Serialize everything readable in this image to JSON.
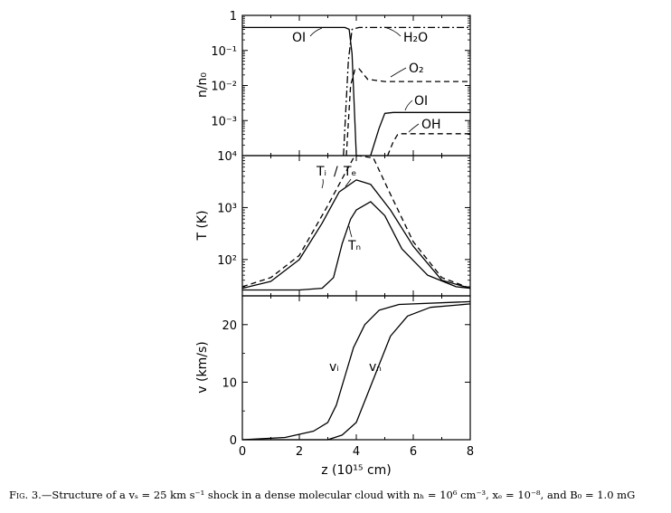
{
  "chart_data": [
    {
      "type": "line",
      "panel": "top",
      "ylabel": "n/n₀",
      "yscale": "log",
      "ylim": [
        0.0001,
        1
      ],
      "xlim": [
        0,
        8
      ],
      "ytick_labels": [
        "1",
        "10⁻¹",
        "10⁻²",
        "10⁻³"
      ],
      "series": [
        {
          "name": "OI",
          "style": "solid",
          "points": [
            [
              0,
              0.45
            ],
            [
              3.6,
              0.45
            ],
            [
              3.75,
              0.4
            ],
            [
              3.85,
              0.08
            ],
            [
              3.95,
              0.001
            ],
            [
              4.0,
              0.0001
            ]
          ]
        },
        {
          "name": "H₂O",
          "style": "dashdot",
          "points": [
            [
              3.55,
              0.0001
            ],
            [
              3.72,
              0.05
            ],
            [
              3.85,
              0.4
            ],
            [
              4.1,
              0.45
            ],
            [
              6,
              0.45
            ],
            [
              8,
              0.45
            ]
          ]
        },
        {
          "name": "O₂",
          "style": "dashed",
          "points": [
            [
              3.65,
              0.0001
            ],
            [
              3.8,
              0.01
            ],
            [
              3.95,
              0.028
            ],
            [
              4.1,
              0.03
            ],
            [
              4.4,
              0.015
            ],
            [
              5,
              0.013
            ],
            [
              8,
              0.013
            ]
          ]
        },
        {
          "name": "OI",
          "style": "solid",
          "points": [
            [
              4.5,
              0.0001
            ],
            [
              4.8,
              0.0006
            ],
            [
              5.0,
              0.0016
            ],
            [
              5.3,
              0.0017
            ],
            [
              8,
              0.0017
            ]
          ]
        },
        {
          "name": "OH",
          "style": "dashed",
          "points": [
            [
              5.1,
              0.0001
            ],
            [
              5.3,
              0.00025
            ],
            [
              5.45,
              0.0004
            ],
            [
              5.6,
              0.00042
            ],
            [
              8,
              0.00042
            ]
          ]
        }
      ]
    },
    {
      "type": "line",
      "panel": "middle",
      "ylabel": "T (K)",
      "yscale": "log",
      "ylim": [
        20,
        10000
      ],
      "xlim": [
        0,
        8
      ],
      "ytick_labels": [
        "10⁴",
        "10³",
        "10²"
      ],
      "series": [
        {
          "name": "Tᵢ",
          "style": "dashed",
          "points": [
            [
              0,
              30
            ],
            [
              1,
              45
            ],
            [
              2,
              120
            ],
            [
              3,
              1100
            ],
            [
              3.6,
              4500
            ],
            [
              3.9,
              9000
            ],
            [
              4.05,
              10000
            ],
            [
              4.6,
              9000
            ],
            [
              5.2,
              1800
            ],
            [
              6,
              220
            ],
            [
              7,
              45
            ],
            [
              8,
              28
            ]
          ]
        },
        {
          "name": "Tₑ",
          "style": "solid",
          "points": [
            [
              0,
              28
            ],
            [
              1,
              38
            ],
            [
              2,
              100
            ],
            [
              2.8,
              500
            ],
            [
              3.4,
              2000
            ],
            [
              4.0,
              3400
            ],
            [
              4.5,
              2800
            ],
            [
              5.2,
              900
            ],
            [
              6,
              180
            ],
            [
              7,
              40
            ],
            [
              8,
              28
            ]
          ]
        },
        {
          "name": "Tₙ",
          "style": "solid",
          "points": [
            [
              0,
              26
            ],
            [
              2,
              26
            ],
            [
              2.8,
              28
            ],
            [
              3.2,
              45
            ],
            [
              3.5,
              200
            ],
            [
              3.8,
              600
            ],
            [
              4.0,
              900
            ],
            [
              4.5,
              1300
            ],
            [
              5.0,
              700
            ],
            [
              5.6,
              160
            ],
            [
              6.5,
              50
            ],
            [
              7.5,
              30
            ],
            [
              8,
              28
            ]
          ]
        }
      ]
    },
    {
      "type": "line",
      "panel": "bottom",
      "xlabel": "z (10¹⁵ cm)",
      "ylabel": "v (km/s)",
      "yscale": "linear",
      "ylim": [
        0,
        25
      ],
      "xlim": [
        0,
        8
      ],
      "yticks": [
        0,
        10,
        20
      ],
      "xticks": [
        0,
        2,
        4,
        6,
        8
      ],
      "series": [
        {
          "name": "vᵢ",
          "style": "solid",
          "points": [
            [
              0,
              0
            ],
            [
              1.5,
              0.4
            ],
            [
              2.5,
              1.5
            ],
            [
              3.0,
              3
            ],
            [
              3.3,
              6
            ],
            [
              3.6,
              11
            ],
            [
              3.9,
              16
            ],
            [
              4.3,
              20
            ],
            [
              4.8,
              22.5
            ],
            [
              5.5,
              23.5
            ],
            [
              8,
              24
            ]
          ]
        },
        {
          "name": "vₙ",
          "style": "solid",
          "points": [
            [
              0,
              0
            ],
            [
              3.0,
              0
            ],
            [
              3.5,
              0.8
            ],
            [
              4.0,
              3
            ],
            [
              4.4,
              8
            ],
            [
              4.8,
              13
            ],
            [
              5.2,
              18
            ],
            [
              5.8,
              21.5
            ],
            [
              6.6,
              23
            ],
            [
              8,
              23.6
            ]
          ]
        }
      ]
    }
  ],
  "labels": {
    "top_OI_1": "OI",
    "top_H2O": "H₂O",
    "top_O2": "O₂",
    "top_OI_2": "OI",
    "top_OH": "OH",
    "mid_Ti": "Tᵢ",
    "mid_slash": "/",
    "mid_Te": "Tₑ",
    "mid_Tn": "Tₙ",
    "bot_vi": "vᵢ",
    "bot_vn": "vₙ"
  },
  "caption": {
    "fig": "Fig. 3.",
    "text": "—Structure of a vₛ = 25 km s⁻¹ shock in a dense molecular cloud with nₕ = 10⁶ cm⁻³, xₑ = 10⁻⁸, and B₀ = 1.0 mG"
  }
}
